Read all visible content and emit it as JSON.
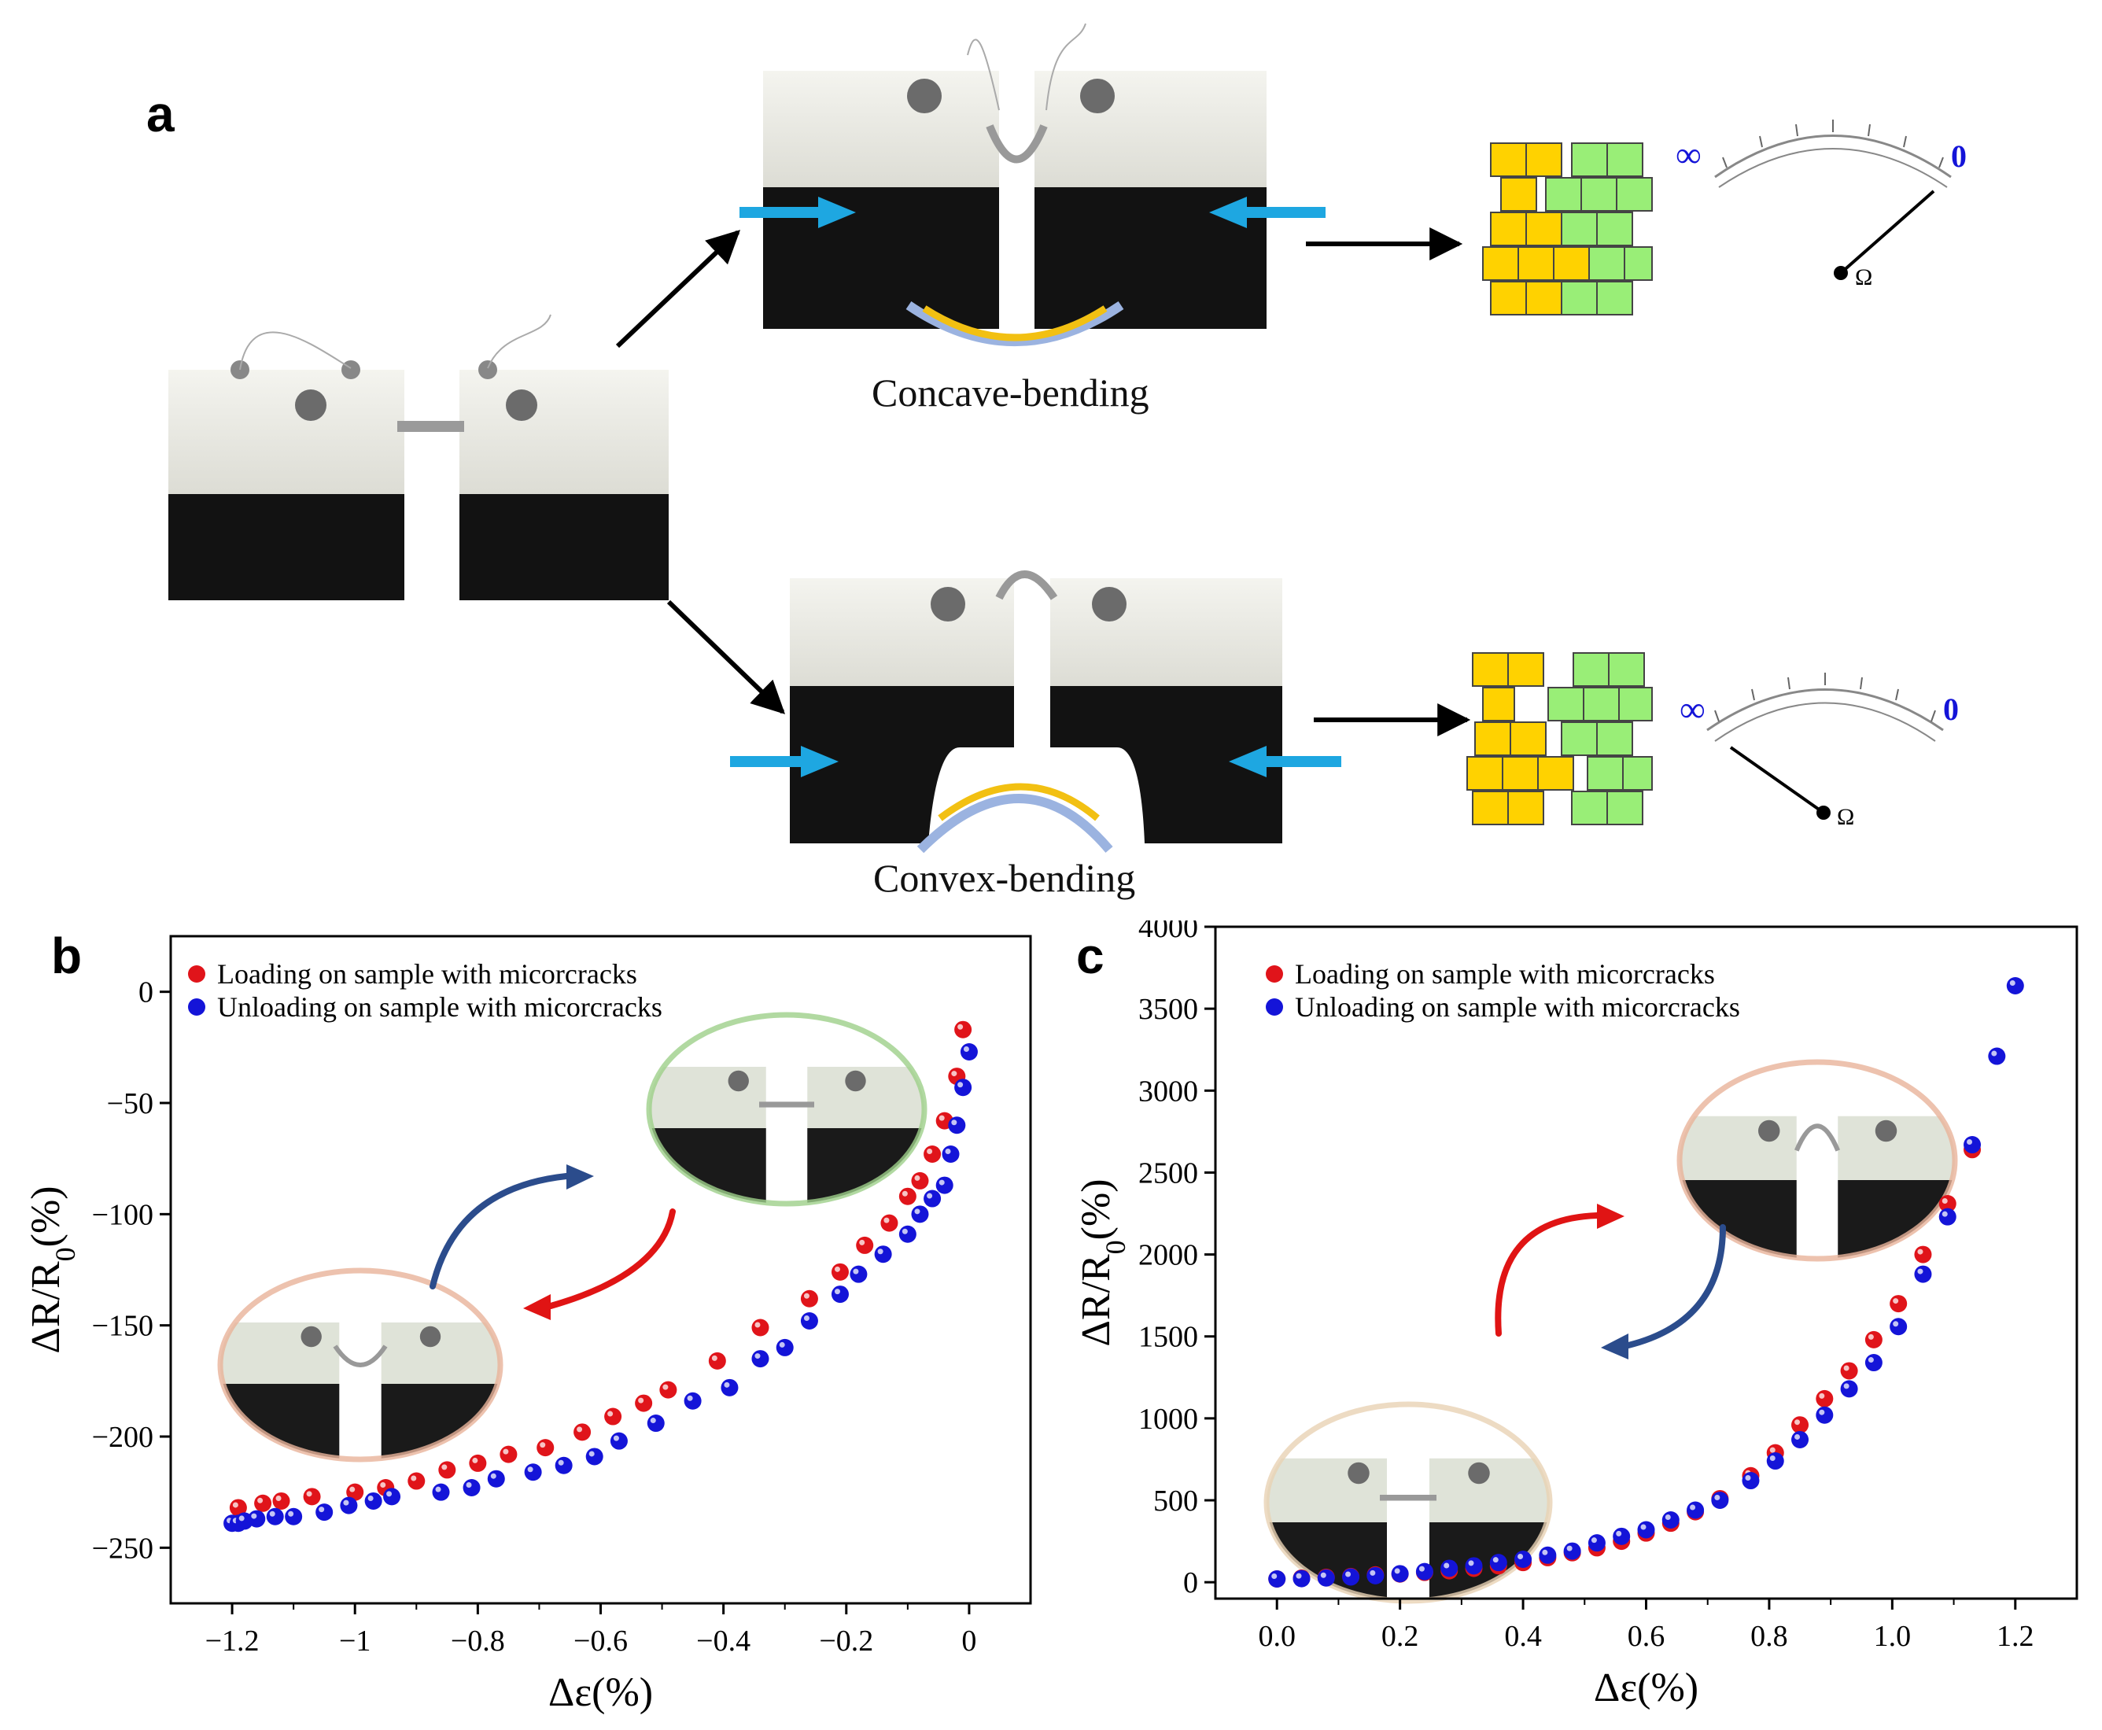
{
  "panel_a": {
    "letter": "a",
    "label_concave": "Concave-bending",
    "label_convex": "Convex-bending",
    "meter_top": {
      "infinity": "∞",
      "zero": "0",
      "ohm": "Ω",
      "needle": "near zero (low resistance)"
    },
    "meter_bottom": {
      "infinity": "∞",
      "zero": "0",
      "ohm": "Ω",
      "needle": "near infinity (high resistance)"
    },
    "colors": {
      "arrow_blue": "#1EA7E1",
      "film_yellow": "#F2C012",
      "film_blue": "#9BB3E0",
      "block_yellow": "#FFD200",
      "block_green": "#99EE77"
    }
  },
  "panel_b": {
    "letter": "b"
  },
  "panel_c": {
    "letter": "c"
  },
  "chart_data": [
    {
      "type": "scatter",
      "panel": "b",
      "xlabel": "Δε(%)",
      "ylabel": "ΔR/R0(%)",
      "xlim": [
        -1.3,
        0.1
      ],
      "ylim": [
        -275,
        25
      ],
      "xticks": [
        -1.2,
        -1.0,
        -0.8,
        -0.6,
        -0.4,
        -0.2,
        0
      ],
      "xtick_labels": [
        "−1.2",
        "−1",
        "−0.8",
        "−0.6",
        "−0.4",
        "−0.2",
        "0"
      ],
      "yticks": [
        0,
        -50,
        -100,
        -150,
        -200,
        -250
      ],
      "ytick_labels": [
        "0",
        "−50",
        "−100",
        "−150",
        "−200",
        "−250"
      ],
      "legend_position": "top-left",
      "series": [
        {
          "name": "Loading on sample with micorcracks",
          "color": "#E0141A",
          "x": [
            -1.19,
            -1.15,
            -1.12,
            -1.07,
            -1.0,
            -0.95,
            -0.9,
            -0.85,
            -0.8,
            -0.75,
            -0.69,
            -0.63,
            -0.58,
            -0.53,
            -0.49,
            -0.41,
            -0.34,
            -0.26,
            -0.21,
            -0.17,
            -0.13,
            -0.1,
            -0.08,
            -0.06,
            -0.04,
            -0.02,
            -0.01
          ],
          "y": [
            -232,
            -230,
            -229,
            -227,
            -225,
            -223,
            -220,
            -215,
            -212,
            -208,
            -205,
            -198,
            -191,
            -185,
            -179,
            -166,
            -151,
            -138,
            -126,
            -114,
            -104,
            -92,
            -85,
            -73,
            -58,
            -38,
            -17
          ]
        },
        {
          "name": "Unloading on sample with micorcracks",
          "color": "#1414D8",
          "x": [
            -1.2,
            -1.19,
            -1.18,
            -1.16,
            -1.13,
            -1.1,
            -1.05,
            -1.01,
            -0.97,
            -0.94,
            -0.86,
            -0.81,
            -0.77,
            -0.71,
            -0.66,
            -0.61,
            -0.57,
            -0.51,
            -0.45,
            -0.39,
            -0.34,
            -0.3,
            -0.26,
            -0.21,
            -0.18,
            -0.14,
            -0.1,
            -0.08,
            -0.06,
            -0.04,
            -0.03,
            -0.02,
            -0.01,
            0.0
          ],
          "y": [
            -239,
            -239,
            -238,
            -237,
            -236,
            -236,
            -234,
            -231,
            -229,
            -227,
            -225,
            -223,
            -219,
            -216,
            -213,
            -209,
            -202,
            -194,
            -184,
            -178,
            -165,
            -160,
            -148,
            -136,
            -127,
            -118,
            -109,
            -100,
            -93,
            -87,
            -73,
            -60,
            -43,
            -27
          ]
        }
      ]
    },
    {
      "type": "scatter",
      "panel": "c",
      "xlabel": "Δε(%)",
      "ylabel": "ΔR/R0(%)",
      "xlim": [
        -0.1,
        1.3
      ],
      "ylim": [
        -100,
        4000
      ],
      "xticks": [
        0,
        0.2,
        0.4,
        0.6,
        0.8,
        1.0,
        1.2
      ],
      "xtick_labels": [
        "0.0",
        "0.2",
        "0.4",
        "0.6",
        "0.8",
        "1.0",
        "1.2"
      ],
      "yticks": [
        0,
        500,
        1000,
        1500,
        2000,
        2500,
        3000,
        3500,
        4000
      ],
      "ytick_labels": [
        "0",
        "500",
        "1000",
        "1500",
        "2000",
        "2500",
        "3000",
        "3500",
        "4000"
      ],
      "legend_position": "top-left",
      "series": [
        {
          "name": "Loading on sample with micorcracks",
          "color": "#E0141A",
          "x": [
            0.0,
            0.04,
            0.08,
            0.12,
            0.16,
            0.2,
            0.24,
            0.28,
            0.32,
            0.36,
            0.4,
            0.44,
            0.48,
            0.52,
            0.56,
            0.6,
            0.64,
            0.68,
            0.72,
            0.77,
            0.81,
            0.85,
            0.89,
            0.93,
            0.97,
            1.01,
            1.05,
            1.09,
            1.13
          ],
          "y": [
            20,
            25,
            30,
            35,
            45,
            50,
            60,
            70,
            85,
            100,
            120,
            150,
            180,
            210,
            250,
            300,
            360,
            430,
            510,
            650,
            790,
            960,
            1120,
            1290,
            1480,
            1700,
            2000,
            2310,
            2640
          ]
        },
        {
          "name": "Unloading on sample with micorcracks",
          "color": "#1414D8",
          "x": [
            0.0,
            0.04,
            0.08,
            0.12,
            0.16,
            0.2,
            0.24,
            0.28,
            0.32,
            0.36,
            0.4,
            0.44,
            0.48,
            0.52,
            0.56,
            0.6,
            0.64,
            0.68,
            0.72,
            0.77,
            0.81,
            0.85,
            0.89,
            0.93,
            0.97,
            1.01,
            1.05,
            1.09,
            1.13,
            1.17,
            1.2
          ],
          "y": [
            20,
            22,
            26,
            32,
            40,
            52,
            65,
            85,
            100,
            120,
            140,
            165,
            190,
            240,
            280,
            320,
            380,
            440,
            500,
            620,
            740,
            870,
            1020,
            1180,
            1340,
            1560,
            1880,
            2230,
            2670,
            3210,
            3640
          ]
        }
      ]
    }
  ]
}
